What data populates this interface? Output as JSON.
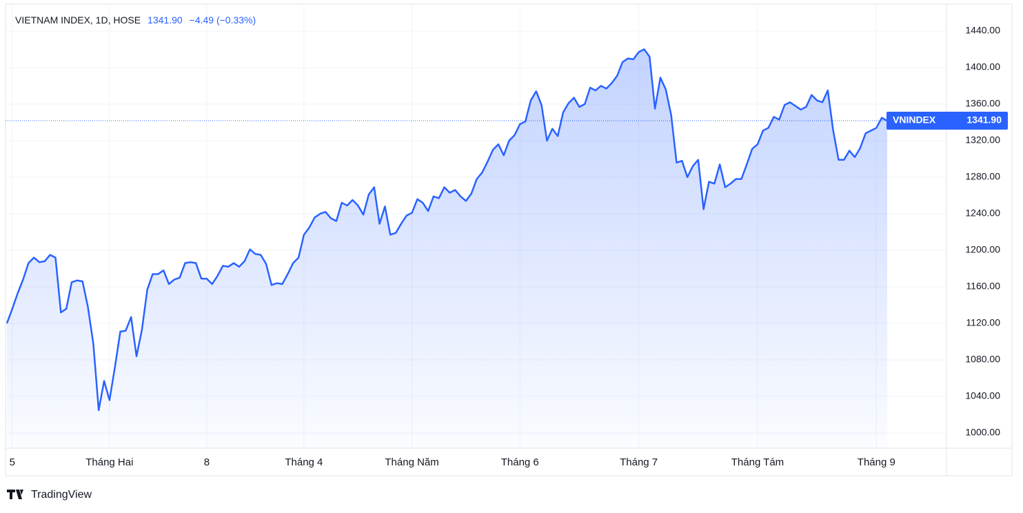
{
  "chart_data": {
    "type": "line",
    "header": {
      "symbol": "VIETNAM INDEX, 1D, HOSE",
      "price": "1341.90",
      "change": "−4.49 (−0.33%)"
    },
    "categories": [
      null,
      "5",
      null,
      null,
      null,
      null,
      null,
      null,
      null,
      null,
      null,
      null,
      null,
      null,
      null,
      null,
      null,
      null,
      null,
      "Tháng Hai",
      null,
      null,
      null,
      null,
      null,
      null,
      null,
      null,
      null,
      null,
      null,
      null,
      null,
      null,
      null,
      null,
      null,
      "8",
      null,
      null,
      null,
      null,
      null,
      null,
      null,
      null,
      null,
      null,
      null,
      null,
      null,
      null,
      null,
      null,
      null,
      "Tháng 4",
      null,
      null,
      null,
      null,
      null,
      null,
      null,
      null,
      null,
      null,
      null,
      null,
      null,
      null,
      null,
      null,
      null,
      null,
      null,
      "Tháng Năm",
      null,
      null,
      null,
      null,
      null,
      null,
      null,
      null,
      null,
      null,
      null,
      null,
      null,
      null,
      null,
      null,
      null,
      null,
      null,
      "Tháng 6",
      null,
      null,
      null,
      null,
      null,
      null,
      null,
      null,
      null,
      null,
      null,
      null,
      null,
      null,
      null,
      null,
      null,
      null,
      null,
      null,
      null,
      "Tháng 7",
      null,
      null,
      null,
      null,
      null,
      null,
      null,
      null,
      null,
      null,
      null,
      null,
      null,
      null,
      null,
      null,
      null,
      null,
      null,
      null,
      null,
      "Tháng Tám",
      null,
      null,
      null,
      null,
      null,
      null,
      null,
      null,
      null,
      null,
      null,
      null,
      null,
      null,
      null,
      null,
      null,
      null,
      null,
      null,
      null,
      "Tháng 9",
      null,
      null
    ],
    "series": [
      {
        "name": "VNINDEX",
        "color": "#2962ff",
        "last_label": "1341.90",
        "values": [
          1120,
          1136,
          1153,
          1168,
          1186,
          1192,
          1187,
          1188,
          1195,
          1192,
          1132,
          1136,
          1165,
          1167,
          1166,
          1138,
          1098,
          1025,
          1057,
          1036,
          1072,
          1111,
          1112,
          1127,
          1084,
          1113,
          1157,
          1174,
          1174,
          1178,
          1163,
          1168,
          1170,
          1186,
          1187,
          1186,
          1169,
          1169,
          1163,
          1172,
          1183,
          1182,
          1186,
          1182,
          1188,
          1201,
          1196,
          1195,
          1185,
          1162,
          1164,
          1163,
          1174,
          1186,
          1192,
          1217,
          1225,
          1236,
          1240,
          1242,
          1235,
          1232,
          1252,
          1249,
          1255,
          1249,
          1239,
          1261,
          1269,
          1229,
          1248,
          1217,
          1219,
          1229,
          1238,
          1241,
          1256,
          1252,
          1243,
          1259,
          1257,
          1269,
          1263,
          1266,
          1259,
          1254,
          1262,
          1278,
          1285,
          1297,
          1310,
          1316,
          1304,
          1320,
          1326,
          1338,
          1341,
          1364,
          1374,
          1359,
          1320,
          1333,
          1325,
          1351,
          1361,
          1367,
          1357,
          1360,
          1378,
          1375,
          1380,
          1377,
          1383,
          1391,
          1406,
          1410,
          1409,
          1417,
          1420,
          1412,
          1355,
          1389,
          1376,
          1348,
          1296,
          1298,
          1280,
          1292,
          1299,
          1245,
          1275,
          1273,
          1294,
          1269,
          1273,
          1278,
          1278,
          1294,
          1311,
          1316,
          1331,
          1334,
          1346,
          1343,
          1359,
          1362,
          1358,
          1354,
          1357,
          1370,
          1364,
          1362,
          1375,
          1331,
          1299,
          1299,
          1309,
          1302,
          1312,
          1328,
          1331,
          1334,
          1345,
          1341.9
        ]
      }
    ],
    "ylim": [
      983.4,
      1467.9
    ],
    "yticks": [
      {
        "value": 1000,
        "label": "1000.00"
      },
      {
        "value": 1040,
        "label": "1040.00"
      },
      {
        "value": 1080,
        "label": "1080.00"
      },
      {
        "value": 1120,
        "label": "1120.00"
      },
      {
        "value": 1160,
        "label": "1160.00"
      },
      {
        "value": 1200,
        "label": "1200.00"
      },
      {
        "value": 1240,
        "label": "1240.00"
      },
      {
        "value": 1280,
        "label": "1280.00"
      },
      {
        "value": 1320,
        "label": "1320.00"
      },
      {
        "value": 1360,
        "label": "1360.00"
      },
      {
        "value": 1400,
        "label": "1400.00"
      },
      {
        "value": 1440,
        "label": "1440.00"
      }
    ],
    "grid": true,
    "footer": "TradingView"
  }
}
